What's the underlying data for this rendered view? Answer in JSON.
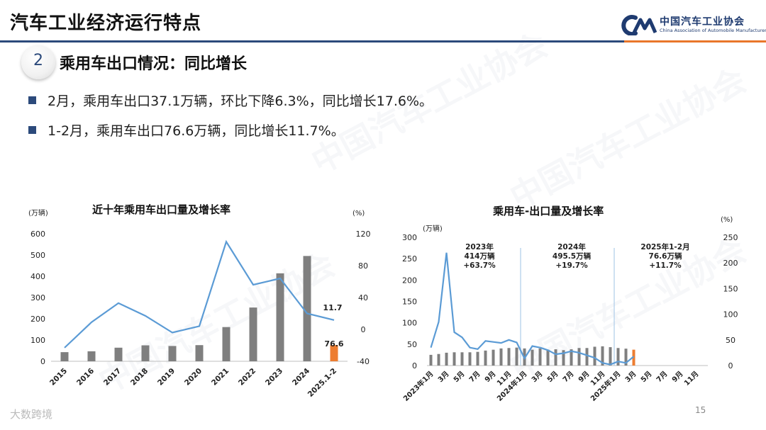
{
  "header": {
    "title": "汽车工业经济运行特点"
  },
  "logo": {
    "cn": "中国汽车工业协会",
    "en": "China Association of Automobile Manufacturers"
  },
  "section": {
    "number": "2",
    "title": "乘用车出口情况：同比增长"
  },
  "bullets": [
    "2月，乘用车出口37.1万辆，环比下降6.3%，同比增长17.6%。",
    "1-2月，乘用车出口76.6万辆，同比增长11.7%。"
  ],
  "watermark": "中国汽车工业协会",
  "footer": {
    "page": "15",
    "source_mark": "大数跨境"
  },
  "colors": {
    "bar": "#7f7f7f",
    "highlight": "#ed7d31",
    "line": "#5b9bd5",
    "accent": "#2c4a7b"
  },
  "chart_data": [
    {
      "type": "bar+line",
      "title": "近十年乘用车出口量及增长率",
      "left_unit": "(万辆)",
      "right_unit": "(%)",
      "categories": [
        "2015",
        "2016",
        "2017",
        "2018",
        "2019",
        "2020",
        "2021",
        "2022",
        "2023",
        "2024",
        "2025.1-2"
      ],
      "bar_values": [
        43,
        47,
        64,
        75,
        72,
        76,
        161,
        253,
        414,
        495.5,
        76.6
      ],
      "line_values": [
        -23,
        9,
        33,
        17,
        -4,
        4,
        110,
        56,
        64,
        20,
        11.7
      ],
      "left_ylim": [
        0,
        600
      ],
      "left_ticks": [
        "0",
        "100",
        "200",
        "300",
        "400",
        "500",
        "600"
      ],
      "right_ylim": [
        -40,
        120
      ],
      "right_ticks": [
        "-40",
        "0",
        "40",
        "80",
        "120"
      ],
      "labels": {
        "last_bar": "76.6",
        "last_line": "11.7"
      }
    },
    {
      "type": "bar+line",
      "title": "乘用车-出口量及增长率",
      "left_unit": "(万辆)",
      "right_unit": "(%)",
      "x_labels": [
        "2023年1月",
        "3月",
        "5月",
        "7月",
        "9月",
        "11月",
        "2024年1月",
        "3月",
        "5月",
        "7月",
        "9月",
        "11月",
        "2025年1月",
        "3月",
        "5月",
        "7月",
        "9月",
        "11月"
      ],
      "bar_values": [
        25,
        27,
        30,
        31,
        31,
        31,
        32,
        35,
        37,
        40,
        41,
        42,
        40,
        37,
        40,
        37,
        38,
        36,
        38,
        41,
        41,
        44,
        45,
        43,
        41,
        39.5,
        37.1
      ],
      "line_values": [
        35,
        85,
        220,
        65,
        55,
        35,
        32,
        48,
        46,
        44,
        50,
        45,
        14,
        38,
        35,
        30,
        22,
        24,
        28,
        25,
        20,
        15,
        5,
        2,
        8,
        5,
        17.6
      ],
      "left_ylim": [
        0,
        300
      ],
      "left_ticks": [
        "0",
        "50",
        "100",
        "150",
        "200",
        "250",
        "300"
      ],
      "right_ylim": [
        0,
        250
      ],
      "right_ticks": [
        "0",
        "50",
        "100",
        "150",
        "200",
        "250"
      ],
      "annotations": [
        [
          "2023年",
          "414万辆",
          "+63.7%"
        ],
        [
          "2024年",
          "495.5万辆",
          "+19.7%"
        ],
        [
          "2025年1-2月",
          "76.6万辆",
          "+11.7%"
        ]
      ]
    }
  ]
}
